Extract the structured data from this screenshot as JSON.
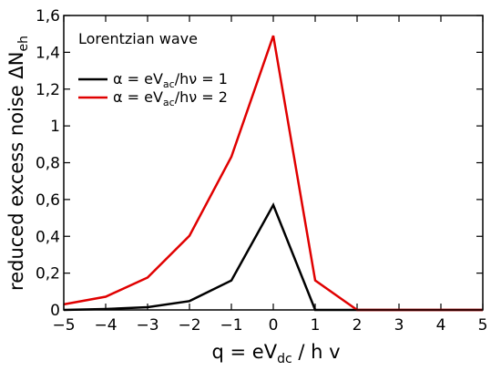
{
  "chart_data": {
    "type": "line",
    "xlabel": "q = eV",
    "xlabel_sub": "dc",
    "xlabel_tail": " / h v",
    "ylabel": "reduced excess noise ΔN",
    "ylabel_sub": "eh",
    "legend_title": "Lorentzian wave",
    "xlim": [
      -5,
      5
    ],
    "ylim": [
      0,
      1.6
    ],
    "grid": false,
    "legend_position": "top-left",
    "x_ticks": [
      -5,
      -4,
      -3,
      -2,
      -1,
      0,
      1,
      2,
      3,
      4,
      5
    ],
    "x_tick_labels": [
      "−5",
      "−4",
      "−3",
      "−2",
      "−1",
      "0",
      "1",
      "2",
      "3",
      "4",
      "5"
    ],
    "y_ticks": [
      0,
      0.2,
      0.4,
      0.6,
      0.8,
      1.0,
      1.2,
      1.4,
      1.6
    ],
    "y_tick_labels": [
      "0",
      "0,2",
      "0,4",
      "0,6",
      "0,8",
      "1",
      "1,2",
      "1,4",
      "1,6"
    ],
    "series": [
      {
        "name": "α = eV",
        "name_sub": "ac",
        "name_tail": "/hν = 1",
        "color": "#000000",
        "x": [
          -5,
          -4,
          -3,
          -2,
          -1,
          0,
          1,
          2,
          3,
          4,
          5
        ],
        "values": [
          0.0,
          0.005,
          0.015,
          0.048,
          0.16,
          0.57,
          0.0,
          0.0,
          0.0,
          0.0,
          0.0
        ]
      },
      {
        "name": "α = eV",
        "name_sub": "ac",
        "name_tail": "/hν = 2",
        "color": "#e00000",
        "x": [
          -5,
          -4,
          -3,
          -2,
          -1,
          0,
          1,
          2,
          3,
          4,
          5
        ],
        "values": [
          0.03,
          0.072,
          0.176,
          0.403,
          0.832,
          1.49,
          0.16,
          0.0,
          0.0,
          0.0,
          0.0
        ]
      }
    ]
  }
}
